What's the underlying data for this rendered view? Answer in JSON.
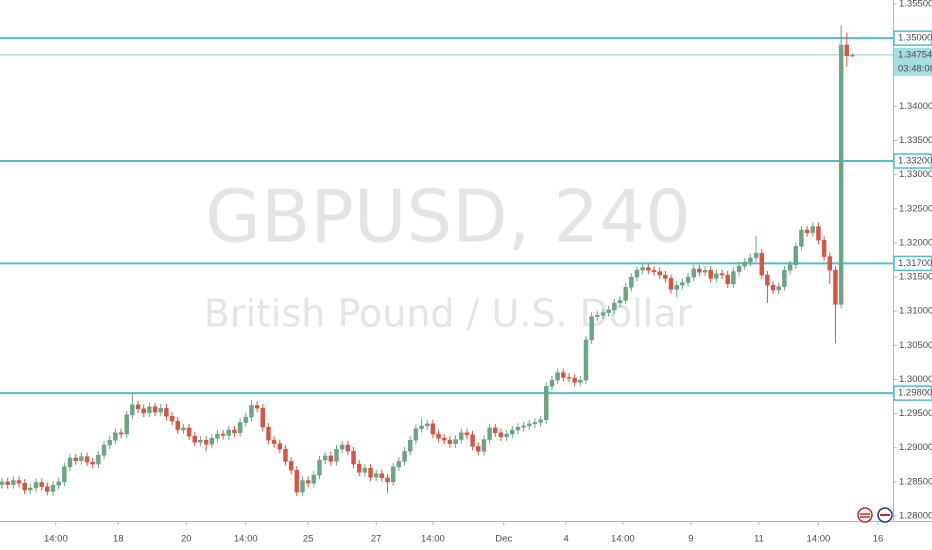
{
  "chart_data": {
    "type": "candlestick",
    "title": "GBPUSD, 240",
    "subtitle": "British Pound / U.S. Dollar",
    "up_color": "#6ba583",
    "down_color": "#d75442",
    "level_color": "#4fbfc9",
    "xlim": [
      -0.35,
      157.15
    ],
    "xticks": [
      {
        "value": 9.5,
        "label": "14:00"
      },
      {
        "value": 20.5,
        "label": "18"
      },
      {
        "value": 32.5,
        "label": "20"
      },
      {
        "value": 43,
        "label": "14:00"
      },
      {
        "value": 54,
        "label": "25"
      },
      {
        "value": 66,
        "label": "27"
      },
      {
        "value": 76,
        "label": "14:00"
      },
      {
        "value": 88.5,
        "label": "Dec"
      },
      {
        "value": 99.5,
        "label": "4"
      },
      {
        "value": 109.5,
        "label": "14:00"
      },
      {
        "value": 121.5,
        "label": "9"
      },
      {
        "value": 133.5,
        "label": "11"
      },
      {
        "value": 144,
        "label": "14:00"
      },
      {
        "value": 154.5,
        "label": "16"
      }
    ],
    "ylim": [
      1.28,
      1.355
    ],
    "yticks": [
      {
        "value": 1.28,
        "label": "1.28000"
      },
      {
        "value": 1.285,
        "label": "1.28500"
      },
      {
        "value": 1.29,
        "label": "1.29000"
      },
      {
        "value": 1.295,
        "label": "1.29500"
      },
      {
        "value": 1.3,
        "label": "1.30000"
      },
      {
        "value": 1.305,
        "label": "1.30500"
      },
      {
        "value": 1.31,
        "label": "1.31000"
      },
      {
        "value": 1.315,
        "label": "1.31500"
      },
      {
        "value": 1.32,
        "label": "1.32000"
      },
      {
        "value": 1.325,
        "label": "1.32500"
      },
      {
        "value": 1.33,
        "label": "1.33000"
      },
      {
        "value": 1.335,
        "label": "1.33500"
      },
      {
        "value": 1.34,
        "label": "1.34000"
      },
      {
        "value": 1.345,
        "label": "1.34500"
      },
      {
        "value": 1.35,
        "label": "1.35000"
      },
      {
        "value": 1.355,
        "label": "1.35500"
      }
    ],
    "levels": [
      {
        "value": 1.35,
        "label": "1.35000"
      },
      {
        "value": 1.332,
        "label": "1.33200"
      },
      {
        "value": 1.317,
        "label": "1.31700"
      },
      {
        "value": 1.298,
        "label": "1.29800"
      }
    ],
    "last_price": {
      "value": 1.34754,
      "label": "1.34754"
    },
    "countdown": "03:48:08",
    "open": [
      1.2846,
      1.285,
      1.2846,
      1.2852,
      1.2848,
      1.2838,
      1.2841,
      1.2849,
      1.2843,
      1.2836,
      1.2845,
      1.285,
      1.2872,
      1.2885,
      1.2881,
      1.2887,
      1.2879,
      1.2876,
      1.2889,
      1.2904,
      1.2911,
      1.2922,
      1.292,
      1.2948,
      1.2963,
      1.2957,
      1.2951,
      1.296,
      1.2952,
      1.2958,
      1.2946,
      1.2939,
      1.2926,
      1.2929,
      1.2917,
      1.2908,
      1.2911,
      1.2905,
      1.2914,
      1.292,
      1.2918,
      1.2926,
      1.2922,
      1.2937,
      1.2945,
      1.2962,
      1.2958,
      1.293,
      1.2911,
      1.2906,
      1.2898,
      1.288,
      1.2867,
      1.2835,
      1.2852,
      1.2848,
      1.286,
      1.2882,
      1.2888,
      1.288,
      1.2898,
      1.2904,
      1.2895,
      1.2876,
      1.2864,
      1.287,
      1.2857,
      1.2862,
      1.2856,
      1.285,
      1.2872,
      1.288,
      1.2895,
      1.2911,
      1.2928,
      1.2932,
      1.2935,
      1.292,
      1.2914,
      1.2911,
      1.2906,
      1.2912,
      1.2922,
      1.2919,
      1.2902,
      1.2895,
      1.2912,
      1.2929,
      1.2922,
      1.2916,
      1.292,
      1.2926,
      1.293,
      1.2932,
      1.2935,
      1.2937,
      1.2941,
      1.299,
      1.2999,
      1.301,
      1.3003,
      1.3002,
      1.2996,
      1.2999,
      1.3058,
      1.3092,
      1.3094,
      1.3098,
      1.3102,
      1.3112,
      1.3116,
      1.3135,
      1.315,
      1.316,
      1.3164,
      1.316,
      1.3158,
      1.3153,
      1.3148,
      1.3132,
      1.3138,
      1.3142,
      1.315,
      1.3162,
      1.3157,
      1.316,
      1.3148,
      1.3155,
      1.3153,
      1.314,
      1.3158,
      1.3166,
      1.3172,
      1.3178,
      1.3185,
      1.3153,
      1.3138,
      1.3131,
      1.3136,
      1.316,
      1.3168,
      1.3195,
      1.3219,
      1.3215,
      1.3224,
      1.3204,
      1.318,
      1.316,
      1.311,
      1.349,
      1.3474
    ],
    "high": [
      1.2856,
      1.2856,
      1.2858,
      1.2858,
      1.2854,
      1.2847,
      1.2855,
      1.2855,
      1.2849,
      1.2851,
      1.2856,
      1.2878,
      1.2891,
      1.2891,
      1.2893,
      1.2893,
      1.2885,
      1.2895,
      1.291,
      1.2917,
      1.2928,
      1.2928,
      1.2954,
      1.298,
      1.2969,
      1.2963,
      1.2966,
      1.2966,
      1.2964,
      1.2964,
      1.2952,
      1.2945,
      1.2935,
      1.2935,
      1.2923,
      1.2917,
      1.2917,
      1.292,
      1.2926,
      1.2926,
      1.2932,
      1.2932,
      1.2943,
      1.2951,
      1.297,
      1.2968,
      1.2964,
      1.2936,
      1.2917,
      1.2912,
      1.2904,
      1.2886,
      1.2873,
      1.2858,
      1.2858,
      1.2866,
      1.2888,
      1.2894,
      1.2894,
      1.2904,
      1.291,
      1.291,
      1.2901,
      1.2882,
      1.2876,
      1.2876,
      1.2868,
      1.2868,
      1.2862,
      1.2878,
      1.2886,
      1.2901,
      1.2917,
      1.2934,
      1.2944,
      1.2941,
      1.2941,
      1.2926,
      1.292,
      1.2917,
      1.2918,
      1.2928,
      1.2928,
      1.2925,
      1.2908,
      1.2918,
      1.2935,
      1.2935,
      1.2928,
      1.2926,
      1.2932,
      1.2936,
      1.2938,
      1.2941,
      1.2943,
      1.2947,
      1.2996,
      1.3005,
      1.3016,
      1.3016,
      1.3009,
      1.3008,
      1.3005,
      1.3064,
      1.3098,
      1.31,
      1.3104,
      1.3108,
      1.3118,
      1.3122,
      1.3141,
      1.3156,
      1.3166,
      1.317,
      1.317,
      1.3166,
      1.3164,
      1.3159,
      1.3154,
      1.3144,
      1.3148,
      1.3156,
      1.3168,
      1.3168,
      1.3166,
      1.3166,
      1.3161,
      1.3161,
      1.3159,
      1.3164,
      1.3172,
      1.3178,
      1.3184,
      1.321,
      1.3191,
      1.3159,
      1.3144,
      1.3142,
      1.3166,
      1.3174,
      1.3201,
      1.3225,
      1.3225,
      1.323,
      1.323,
      1.321,
      1.3186,
      1.3166,
      1.3519,
      1.3508,
      1.3478
    ],
    "low": [
      1.284,
      1.284,
      1.284,
      1.2842,
      1.2832,
      1.2832,
      1.2835,
      1.2837,
      1.283,
      1.283,
      1.2839,
      1.2844,
      1.2866,
      1.2875,
      1.2875,
      1.2873,
      1.287,
      1.287,
      1.2883,
      1.2898,
      1.2905,
      1.2914,
      1.2914,
      1.2942,
      1.2951,
      1.2945,
      1.2945,
      1.2946,
      1.2946,
      1.294,
      1.2933,
      1.292,
      1.292,
      1.2911,
      1.2902,
      1.2902,
      1.2895,
      1.2899,
      1.2908,
      1.2912,
      1.2912,
      1.2916,
      1.2916,
      1.2931,
      1.2939,
      1.2952,
      1.2924,
      1.2905,
      1.29,
      1.2892,
      1.2874,
      1.2861,
      1.2829,
      1.2829,
      1.2842,
      1.2842,
      1.2854,
      1.2876,
      1.2874,
      1.2874,
      1.2892,
      1.2889,
      1.287,
      1.2858,
      1.2858,
      1.2851,
      1.2851,
      1.285,
      1.2834,
      1.2844,
      1.2866,
      1.2874,
      1.2889,
      1.2905,
      1.2922,
      1.2926,
      1.2914,
      1.2908,
      1.2905,
      1.29,
      1.29,
      1.2906,
      1.2913,
      1.2896,
      1.2889,
      1.2889,
      1.2906,
      1.2916,
      1.291,
      1.291,
      1.2914,
      1.292,
      1.2924,
      1.2926,
      1.2929,
      1.2931,
      1.2935,
      1.2984,
      1.2993,
      1.2997,
      1.2996,
      1.299,
      1.299,
      1.2993,
      1.3052,
      1.3086,
      1.3088,
      1.3092,
      1.3096,
      1.3106,
      1.311,
      1.3129,
      1.3144,
      1.3154,
      1.3154,
      1.3152,
      1.3147,
      1.3142,
      1.3126,
      1.312,
      1.3132,
      1.3136,
      1.3144,
      1.3151,
      1.3151,
      1.3142,
      1.3142,
      1.3147,
      1.3134,
      1.3134,
      1.3152,
      1.316,
      1.3166,
      1.3172,
      1.3147,
      1.3112,
      1.3125,
      1.3125,
      1.313,
      1.3154,
      1.3162,
      1.3189,
      1.3209,
      1.3209,
      1.3198,
      1.3174,
      1.314,
      1.3053,
      1.3104,
      1.3458,
      1.3472
    ],
    "close": [
      1.285,
      1.2846,
      1.2852,
      1.2848,
      1.2838,
      1.2841,
      1.2849,
      1.2843,
      1.2836,
      1.2845,
      1.285,
      1.2872,
      1.2885,
      1.2881,
      1.2887,
      1.2879,
      1.2876,
      1.2889,
      1.2904,
      1.2911,
      1.2922,
      1.292,
      1.2948,
      1.2963,
      1.2957,
      1.2951,
      1.296,
      1.2952,
      1.2958,
      1.2946,
      1.2939,
      1.2926,
      1.2929,
      1.2917,
      1.2908,
      1.2911,
      1.2905,
      1.2914,
      1.292,
      1.2918,
      1.2926,
      1.2922,
      1.2937,
      1.2945,
      1.2962,
      1.2958,
      1.293,
      1.2911,
      1.2906,
      1.2898,
      1.288,
      1.2867,
      1.2835,
      1.2852,
      1.2848,
      1.286,
      1.2882,
      1.2888,
      1.288,
      1.2898,
      1.2904,
      1.2895,
      1.2876,
      1.2864,
      1.287,
      1.2857,
      1.2862,
      1.2856,
      1.285,
      1.2872,
      1.288,
      1.2895,
      1.2911,
      1.2928,
      1.2932,
      1.2935,
      1.292,
      1.2914,
      1.2911,
      1.2906,
      1.2912,
      1.2922,
      1.2919,
      1.2902,
      1.2895,
      1.2912,
      1.2929,
      1.2922,
      1.2916,
      1.292,
      1.2926,
      1.293,
      1.2932,
      1.2935,
      1.2937,
      1.2941,
      1.299,
      1.2999,
      1.301,
      1.3003,
      1.3002,
      1.2996,
      1.2999,
      1.3058,
      1.3092,
      1.3094,
      1.3098,
      1.3102,
      1.3112,
      1.3116,
      1.3135,
      1.315,
      1.316,
      1.3164,
      1.316,
      1.3158,
      1.3153,
      1.3148,
      1.3132,
      1.3138,
      1.3142,
      1.315,
      1.3162,
      1.3157,
      1.316,
      1.3148,
      1.3155,
      1.3153,
      1.314,
      1.3158,
      1.3166,
      1.3172,
      1.3178,
      1.3185,
      1.3153,
      1.3138,
      1.3131,
      1.3136,
      1.316,
      1.3168,
      1.3195,
      1.3219,
      1.3215,
      1.3224,
      1.3204,
      1.318,
      1.316,
      1.311,
      1.349,
      1.3474,
      1.3475
    ]
  }
}
